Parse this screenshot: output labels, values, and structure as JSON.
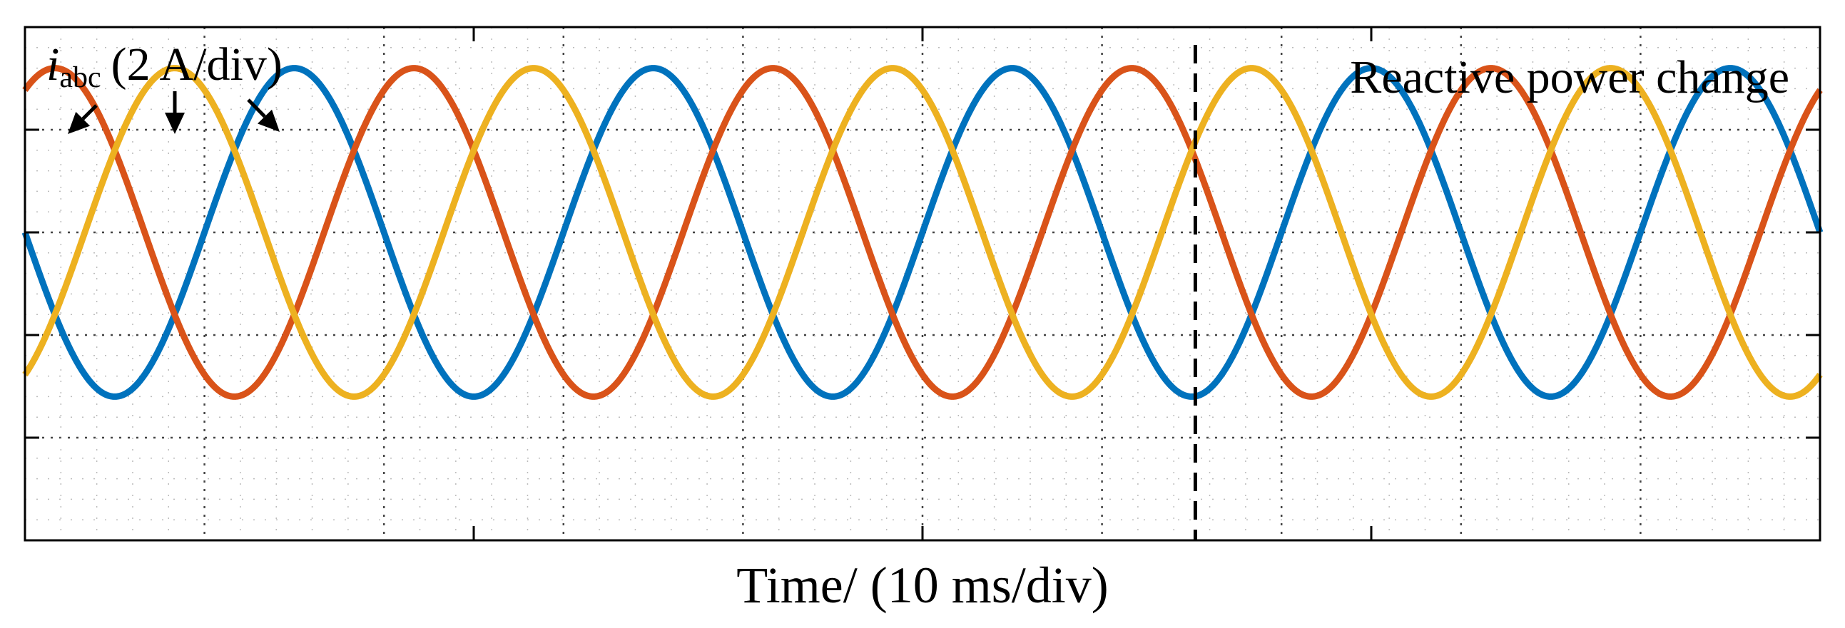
{
  "chart_data": {
    "type": "line",
    "xlabel": "Time/ (10 ms/div)",
    "signal_label": {
      "symbol": "i",
      "subscript": "abc",
      "scale": "(2 A/div)"
    },
    "annotation": {
      "text": "Reactive power change",
      "event_time_div": 6.52
    },
    "x_divisions": 10,
    "y_divisions": 5,
    "x_range_div": [
      0,
      10
    ],
    "y_range_div": [
      -3,
      2
    ],
    "grid": true,
    "frequency_hz": 50,
    "time_per_div_ms": 10,
    "series": [
      {
        "color": "#0072BD",
        "amplitude_div": 1.6,
        "offset_div": 0.0,
        "phase_deg": 180
      },
      {
        "color": "#D95319",
        "amplitude_div": 1.6,
        "offset_div": 0.0,
        "phase_deg": 60
      },
      {
        "color": "#EDB120",
        "amplitude_div": 1.6,
        "offset_div": 0.0,
        "phase_deg": -60
      }
    ]
  }
}
